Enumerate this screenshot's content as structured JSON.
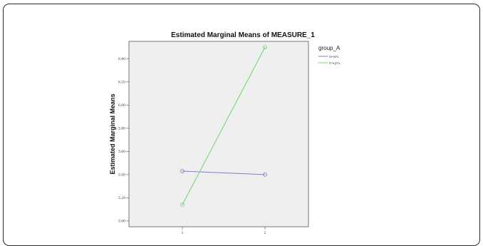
{
  "chart_data": {
    "type": "line",
    "title": "Estimated Marginal Means of MEASURE_1",
    "xlabel": "",
    "ylabel": "Estimated Marginal Means",
    "categories": [
      "1",
      "2"
    ],
    "yticks": [
      "5.00",
      "5.20",
      "5.40",
      "5.60",
      "5.80",
      "6.00",
      "6.20",
      "6.40"
    ],
    "ylim": [
      4.95,
      6.55
    ],
    "grid": false,
    "legend": {
      "title": "group_A",
      "placement": "right"
    },
    "series": [
      {
        "name": "ניסויית",
        "values": [
          5.43,
          5.4
        ],
        "color": "#7b7fd1"
      },
      {
        "name": "ביקורת",
        "values": [
          5.14,
          6.5
        ],
        "color": "#6dd46d"
      }
    ]
  }
}
